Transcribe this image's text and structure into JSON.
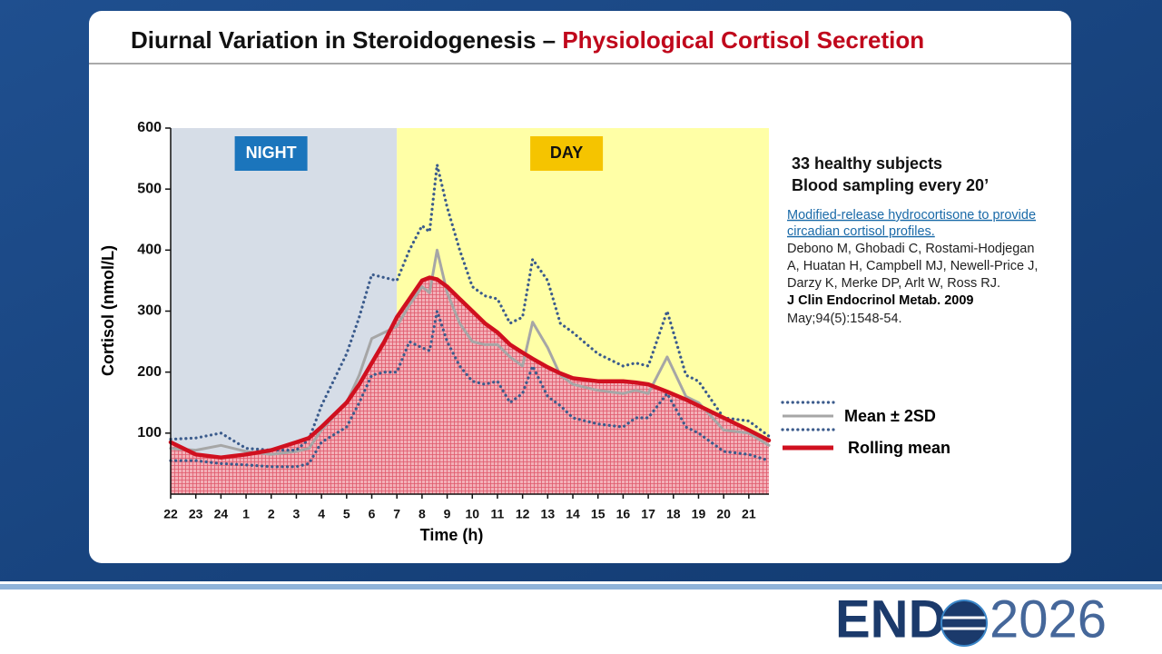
{
  "slide": {
    "title": "Diurnal Variation in Steroidogenesis – ",
    "title_highlight": "Physiological Cortisol Secretion",
    "notes": [
      "33 healthy subjects",
      "Blood sampling every 20’"
    ],
    "reference": {
      "link_lines": [
        "Modified-release hydrocortisone to provide",
        "circadian cortisol profiles."
      ],
      "author_lines": [
        "Debono M, Ghobadi C, Rostami-Hodjegan",
        "A, Huatan H, Campbell MJ, Newell-Price J,",
        "Darzy K, Merke DP, Arlt W, Ross RJ."
      ],
      "journal": "J Clin Endocrinol Metab. 2009",
      "citation": "May;94(5):1548-54."
    },
    "logo": {
      "text": "END",
      "year": "2026"
    }
  },
  "chart_data": {
    "type": "line",
    "x_label": "Time (h)",
    "y_label": "Cortisol (nmol/L)",
    "xlim": [
      0,
      23.8
    ],
    "ylim": [
      0,
      600
    ],
    "yticks": [
      100,
      200,
      300,
      400,
      500,
      600
    ],
    "xticks": [
      {
        "value": 0,
        "label": "22"
      },
      {
        "value": 1,
        "label": "23"
      },
      {
        "value": 2,
        "label": "24"
      },
      {
        "value": 3,
        "label": "1"
      },
      {
        "value": 4,
        "label": "2"
      },
      {
        "value": 5,
        "label": "3"
      },
      {
        "value": 6,
        "label": "4"
      },
      {
        "value": 7,
        "label": "5"
      },
      {
        "value": 8,
        "label": "6"
      },
      {
        "value": 9,
        "label": "7"
      },
      {
        "value": 10,
        "label": "8"
      },
      {
        "value": 11,
        "label": "9"
      },
      {
        "value": 12,
        "label": "10"
      },
      {
        "value": 13,
        "label": "11"
      },
      {
        "value": 14,
        "label": "12"
      },
      {
        "value": 15,
        "label": "13"
      },
      {
        "value": 16,
        "label": "14"
      },
      {
        "value": 17,
        "label": "15"
      },
      {
        "value": 18,
        "label": "16"
      },
      {
        "value": 19,
        "label": "17"
      },
      {
        "value": 20,
        "label": "18"
      },
      {
        "value": 21,
        "label": "19"
      },
      {
        "value": 22,
        "label": "20"
      },
      {
        "value": 23,
        "label": "21"
      }
    ],
    "regions": [
      {
        "label": "NIGHT",
        "from": 0,
        "to": 9,
        "color": "#d6dde7",
        "label_color": "#1b75bc"
      },
      {
        "label": "DAY",
        "from": 9,
        "to": 23.8,
        "color": "#ffffa6",
        "label_color": "#f5c400"
      }
    ],
    "x": [
      0,
      1,
      2,
      3,
      4,
      5,
      5.5,
      6,
      7,
      7.5,
      8,
      8.5,
      9,
      9.5,
      10,
      10.3,
      10.6,
      11,
      11.5,
      12,
      12.5,
      13,
      13.5,
      14,
      14.4,
      15,
      15.5,
      16,
      17,
      18,
      18.5,
      19,
      19.75,
      20.5,
      21,
      22,
      23,
      23.8
    ],
    "series": [
      {
        "color": "#3b5b8c",
        "style": "dotted",
        "values": [
          90,
          92,
          100,
          75,
          72,
          72,
          90,
          145,
          230,
          290,
          360,
          355,
          350,
          400,
          440,
          430,
          540,
          470,
          400,
          340,
          325,
          320,
          280,
          290,
          385,
          350,
          280,
          265,
          230,
          210,
          215,
          210,
          300,
          195,
          185,
          125,
          120,
          95
        ]
      },
      {
        "color": "#3b5b8c",
        "style": "dotted",
        "values": [
          55,
          55,
          50,
          48,
          45,
          45,
          50,
          85,
          110,
          150,
          195,
          200,
          200,
          250,
          240,
          235,
          300,
          250,
          210,
          185,
          180,
          185,
          150,
          165,
          210,
          160,
          145,
          125,
          115,
          110,
          125,
          125,
          165,
          110,
          100,
          70,
          65,
          55
        ]
      },
      {
        "name": "Mean ± 2SD",
        "color": "#a6a6a6",
        "style": "solid",
        "values": [
          75,
          72,
          80,
          70,
          65,
          70,
          75,
          105,
          150,
          195,
          255,
          265,
          275,
          310,
          340,
          330,
          400,
          330,
          280,
          250,
          245,
          245,
          225,
          210,
          282,
          240,
          195,
          180,
          170,
          165,
          170,
          165,
          225,
          160,
          150,
          105,
          100,
          80
        ]
      },
      {
        "name": "Rolling mean",
        "color": "#d0101f",
        "style": "thick",
        "values": [
          85,
          65,
          60,
          65,
          72,
          85,
          92,
          110,
          150,
          180,
          215,
          250,
          290,
          320,
          350,
          355,
          352,
          340,
          320,
          300,
          280,
          265,
          245,
          232,
          222,
          208,
          198,
          190,
          185,
          185,
          183,
          180,
          168,
          155,
          145,
          125,
          105,
          88
        ]
      }
    ]
  }
}
